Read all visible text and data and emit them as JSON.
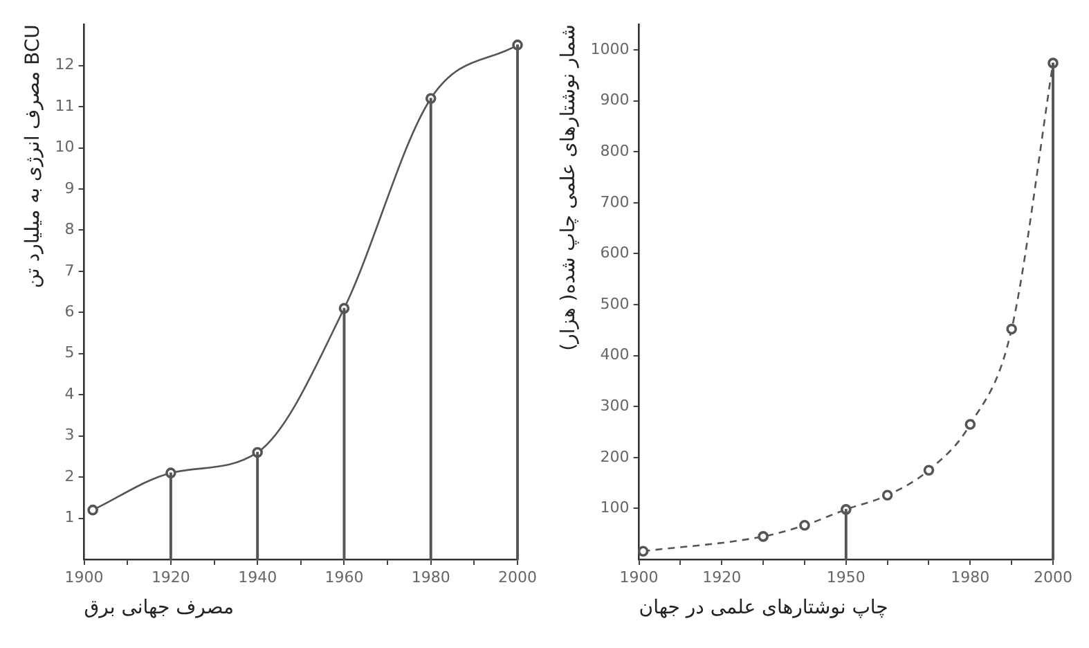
{
  "chart_data": [
    {
      "type": "line",
      "xlabel": "مصرف جهانی برق",
      "ylabel": "مصرف انرژی به میلیارد تن BCU",
      "xlim": [
        1900,
        2000
      ],
      "ylim": [
        0,
        13
      ],
      "xticks": [
        1900,
        {
          "value": 1910,
          "label": null
        },
        1920,
        {
          "value": 1930,
          "label": null
        },
        1940,
        {
          "value": 1950,
          "label": null
        },
        1960,
        {
          "value": 1970,
          "label": null
        },
        1980,
        {
          "value": 1990,
          "label": null
        },
        2000
      ],
      "yticks": [
        1,
        2,
        3,
        4,
        5,
        6,
        7,
        8,
        9,
        10,
        11,
        12
      ],
      "marker": "circle",
      "line_style": "solid",
      "series": [
        {
          "type": "line",
          "color": "#555555",
          "x": [
            1902,
            1920,
            1940,
            1960,
            1980,
            2000
          ],
          "values": [
            1.2,
            2.1,
            2.6,
            6.1,
            11.2,
            12.5
          ]
        },
        {
          "type": "bar",
          "color": "#555555",
          "x": [
            1920,
            1940,
            1960,
            1980,
            2000
          ],
          "values": [
            2.1,
            2.6,
            6.1,
            11.2,
            12.5
          ]
        }
      ]
    },
    {
      "type": "line",
      "xlabel": "چاپ نوشتارهای علمی در جهان",
      "ylabel": "شمار نوشتارهای علمی چاپ شده( هزار)",
      "xlim": [
        1900,
        2000
      ],
      "ylim": [
        0,
        1050
      ],
      "xticks": [
        1900,
        {
          "value": 1910,
          "label": null
        },
        1920,
        {
          "value": 1930,
          "label": null
        },
        {
          "value": 1940,
          "label": null
        },
        1950,
        {
          "value": 1960,
          "label": null
        },
        {
          "value": 1970,
          "label": null
        },
        1980,
        {
          "value": 1990,
          "label": null
        },
        2000
      ],
      "yticks": [
        100,
        200,
        300,
        400,
        500,
        600,
        700,
        800,
        900,
        1000
      ],
      "marker": "circle",
      "line_style": "dashed",
      "series": [
        {
          "type": "line",
          "color": "#555555",
          "x": [
            1901,
            1930,
            1940,
            1950,
            1960,
            1970,
            1980,
            1990,
            2000
          ],
          "values": [
            16,
            45,
            67,
            98,
            126,
            175,
            265,
            452,
            974
          ]
        },
        {
          "type": "bar",
          "color": "#555555",
          "x": [
            1950,
            2000
          ],
          "values": [
            98,
            974
          ]
        }
      ]
    }
  ]
}
